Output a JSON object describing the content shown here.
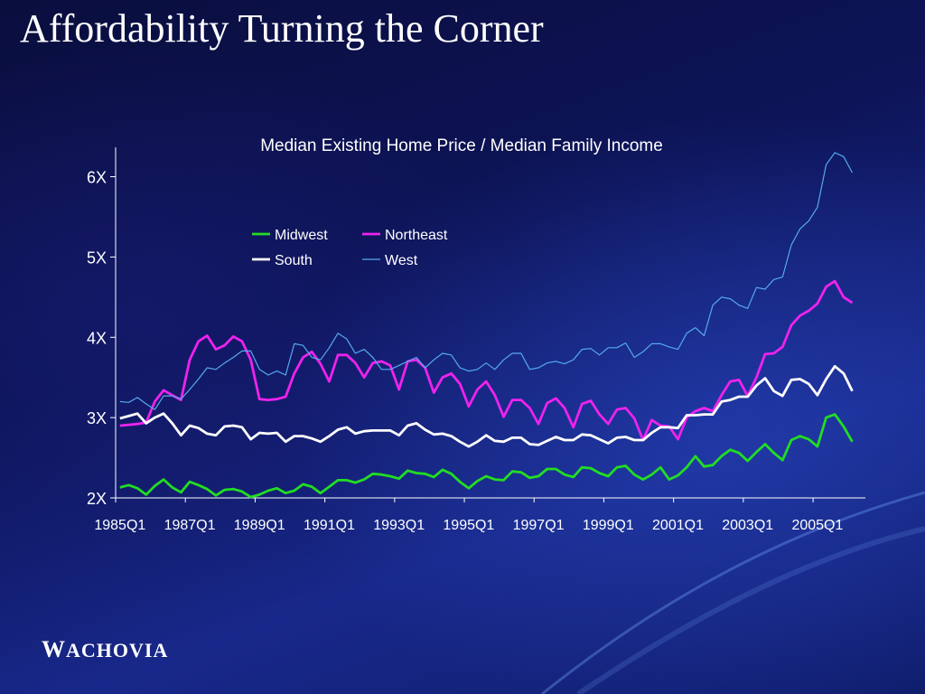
{
  "slide": {
    "title": "Affordability Turning the Corner",
    "logo_first": "W",
    "logo_rest": "ACHOVIA"
  },
  "chart_data": {
    "type": "line",
    "title": "Median Existing Home Price / Median Family Income",
    "xlabel": "",
    "ylabel": "",
    "ylim": [
      2,
      6.4
    ],
    "y_ticks": [
      "2X",
      "3X",
      "4X",
      "5X",
      "6X"
    ],
    "y_tick_values": [
      2,
      3,
      4,
      5,
      6
    ],
    "x_ticks": [
      "1985Q1",
      "1987Q1",
      "1989Q1",
      "1991Q1",
      "1993Q1",
      "1995Q1",
      "1997Q1",
      "1999Q1",
      "2001Q1",
      "2003Q1",
      "2005Q1"
    ],
    "x_start": "1985Q1",
    "x_end": "2006Q2",
    "grid": false,
    "legend_position": "top-left",
    "series": [
      {
        "name": "Midwest",
        "color": "#22dd22",
        "values": [
          2.13,
          2.16,
          2.12,
          2.04,
          2.15,
          2.23,
          2.13,
          2.07,
          2.2,
          2.16,
          2.11,
          2.03,
          2.1,
          2.11,
          2.08,
          2.01,
          2.04,
          2.09,
          2.12,
          2.06,
          2.09,
          2.17,
          2.14,
          2.06,
          2.14,
          2.22,
          2.22,
          2.19,
          2.23,
          2.3,
          2.29,
          2.27,
          2.24,
          2.34,
          2.31,
          2.3,
          2.26,
          2.35,
          2.3,
          2.2,
          2.12,
          2.21,
          2.27,
          2.23,
          2.22,
          2.33,
          2.32,
          2.25,
          2.27,
          2.36,
          2.36,
          2.29,
          2.26,
          2.38,
          2.37,
          2.31,
          2.27,
          2.38,
          2.4,
          2.29,
          2.23,
          2.29,
          2.38,
          2.23,
          2.28,
          2.38,
          2.52,
          2.39,
          2.41,
          2.52,
          2.6,
          2.56,
          2.46,
          2.57,
          2.67,
          2.56,
          2.47,
          2.72,
          2.77,
          2.73,
          2.64,
          3.0,
          3.04,
          2.89,
          2.7
        ]
      },
      {
        "name": "Northeast",
        "color": "#ee22ee",
        "values": [
          2.9,
          2.91,
          2.92,
          2.94,
          3.2,
          3.34,
          3.28,
          3.22,
          3.72,
          3.95,
          4.02,
          3.85,
          3.9,
          4.01,
          3.95,
          3.72,
          3.23,
          3.22,
          3.23,
          3.26,
          3.55,
          3.75,
          3.82,
          3.67,
          3.45,
          3.78,
          3.78,
          3.68,
          3.5,
          3.68,
          3.7,
          3.65,
          3.35,
          3.7,
          3.72,
          3.62,
          3.31,
          3.5,
          3.55,
          3.42,
          3.14,
          3.35,
          3.45,
          3.28,
          3.01,
          3.22,
          3.22,
          3.12,
          2.92,
          3.18,
          3.24,
          3.12,
          2.88,
          3.17,
          3.21,
          3.04,
          2.92,
          3.1,
          3.12,
          2.99,
          2.72,
          2.97,
          2.9,
          2.89,
          2.73,
          3.0,
          3.08,
          3.12,
          3.08,
          3.28,
          3.45,
          3.47,
          3.27,
          3.5,
          3.79,
          3.8,
          3.88,
          4.15,
          4.27,
          4.33,
          4.42,
          4.63,
          4.7,
          4.5,
          4.43
        ]
      },
      {
        "name": "South",
        "color": "#ffffff",
        "values": [
          2.99,
          3.02,
          3.05,
          2.93,
          3.0,
          3.05,
          2.93,
          2.78,
          2.9,
          2.87,
          2.8,
          2.78,
          2.89,
          2.9,
          2.88,
          2.73,
          2.81,
          2.8,
          2.81,
          2.7,
          2.77,
          2.77,
          2.74,
          2.7,
          2.77,
          2.85,
          2.88,
          2.8,
          2.83,
          2.84,
          2.84,
          2.84,
          2.78,
          2.9,
          2.93,
          2.85,
          2.79,
          2.8,
          2.77,
          2.7,
          2.64,
          2.7,
          2.78,
          2.71,
          2.7,
          2.75,
          2.75,
          2.67,
          2.66,
          2.71,
          2.76,
          2.72,
          2.72,
          2.79,
          2.78,
          2.73,
          2.68,
          2.75,
          2.76,
          2.72,
          2.72,
          2.81,
          2.88,
          2.88,
          2.87,
          3.03,
          3.03,
          3.04,
          3.04,
          3.2,
          3.22,
          3.26,
          3.26,
          3.4,
          3.49,
          3.33,
          3.27,
          3.47,
          3.48,
          3.42,
          3.28,
          3.48,
          3.64,
          3.55,
          3.33
        ]
      },
      {
        "name": "West",
        "color": "#55aaee",
        "values": [
          3.2,
          3.19,
          3.25,
          3.17,
          3.1,
          3.27,
          3.27,
          3.23,
          3.35,
          3.48,
          3.62,
          3.6,
          3.68,
          3.75,
          3.83,
          3.83,
          3.6,
          3.53,
          3.58,
          3.53,
          3.92,
          3.9,
          3.75,
          3.72,
          3.87,
          4.05,
          3.98,
          3.8,
          3.85,
          3.75,
          3.6,
          3.6,
          3.65,
          3.7,
          3.75,
          3.62,
          3.72,
          3.8,
          3.78,
          3.62,
          3.58,
          3.6,
          3.68,
          3.6,
          3.72,
          3.8,
          3.8,
          3.6,
          3.62,
          3.68,
          3.7,
          3.67,
          3.72,
          3.85,
          3.86,
          3.78,
          3.87,
          3.87,
          3.93,
          3.75,
          3.82,
          3.92,
          3.92,
          3.88,
          3.85,
          4.05,
          4.12,
          4.02,
          4.4,
          4.5,
          4.48,
          4.4,
          4.36,
          4.62,
          4.6,
          4.72,
          4.75,
          5.15,
          5.35,
          5.45,
          5.62,
          6.15,
          6.3,
          6.25,
          6.05
        ]
      }
    ]
  }
}
